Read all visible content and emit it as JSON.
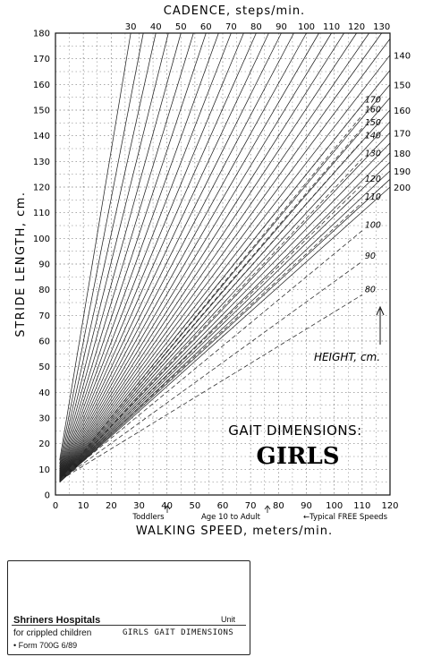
{
  "chart_data": {
    "type": "line",
    "title": "GAIT DIMENSIONS:",
    "subtitle": "GIRLS",
    "xlabel": "WALKING SPEED, meters/min.",
    "ylabel": "STRIDE LENGTH, cm.",
    "top_axis_label": "CADENCE, steps/min.",
    "xlim": [
      0,
      120
    ],
    "ylim": [
      0,
      180
    ],
    "x_ticks": [
      "0",
      "10",
      "20",
      "30",
      "40",
      "50",
      "60",
      "70",
      "80",
      "90",
      "100",
      "110",
      "120"
    ],
    "y_ticks": [
      "0",
      "10",
      "20",
      "30",
      "40",
      "50",
      "60",
      "70",
      "80",
      "90",
      "100",
      "110",
      "120",
      "130",
      "140",
      "150",
      "160",
      "170",
      "180"
    ],
    "cadence_lines": {
      "start": 30,
      "step": 5,
      "end": 200,
      "labels": [
        "30",
        "40",
        "50",
        "60",
        "70",
        "80",
        "90",
        "100",
        "110",
        "120",
        "130",
        "140",
        "150",
        "160",
        "170",
        "180",
        "190",
        "200"
      ]
    },
    "height_lines": {
      "label": "HEIGHT, cm.",
      "series": [
        {
          "name": "80",
          "points": [
            [
              2,
              6
            ],
            [
              110,
              78
            ]
          ]
        },
        {
          "name": "90",
          "points": [
            [
              2,
              6
            ],
            [
              110,
              91
            ]
          ]
        },
        {
          "name": "100",
          "points": [
            [
              2,
              6
            ],
            [
              110,
              103
            ]
          ]
        },
        {
          "name": "110",
          "points": [
            [
              2,
              6
            ],
            [
              110,
              114
            ]
          ]
        },
        {
          "name": "120",
          "points": [
            [
              2,
              6
            ],
            [
              110,
              121
            ]
          ]
        },
        {
          "name": "130",
          "points": [
            [
              2,
              6
            ],
            [
              110,
              131
            ]
          ]
        },
        {
          "name": "140",
          "points": [
            [
              2,
              6
            ],
            [
              110,
              138
            ]
          ]
        },
        {
          "name": "150",
          "points": [
            [
              2,
              6
            ],
            [
              110,
              143
            ]
          ]
        },
        {
          "name": "160",
          "points": [
            [
              2,
              6
            ],
            [
              110,
              148
            ]
          ]
        },
        {
          "name": "170",
          "points": [
            [
              2,
              6
            ],
            [
              110,
              152
            ]
          ]
        }
      ]
    },
    "annotations": {
      "toddlers": "Toddlers",
      "age": "Age 10 to Adult",
      "typical": "←Typical FREE Speeds"
    },
    "grid": true
  },
  "form": {
    "organization": "Shriners Hospitals",
    "organization_sub": "for crippled children",
    "unit": "Unit",
    "title": "GIRLS GAIT DIMENSIONS",
    "form_no": "• Form 700G   6/89"
  }
}
